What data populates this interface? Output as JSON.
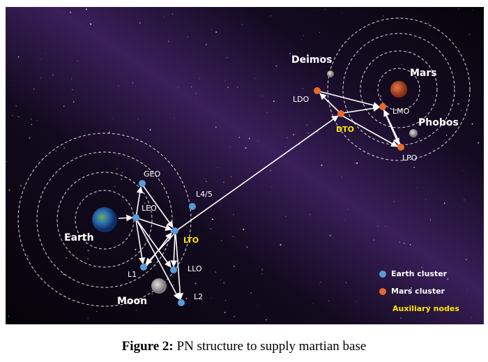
{
  "figure": {
    "nodes": {
      "earth": "Earth",
      "leo": "LEO",
      "geo": "GEO",
      "l45": "L4/5",
      "lto": "LTO",
      "l1": "L1",
      "llo": "LLO",
      "l2": "L2",
      "moon": "Moon",
      "deimos": "Deimos",
      "ldo": "LDO",
      "dto": "DTO",
      "mars": "Mars",
      "lmo": "LMO",
      "phobos": "Phobos",
      "lpo": "LPO"
    },
    "legend": [
      "Earth cluster",
      "Mars cluster",
      "Auxiliary nodes"
    ],
    "caption": {
      "label": "Figure 2:",
      "text": "PN structure to supply martian base"
    }
  }
}
